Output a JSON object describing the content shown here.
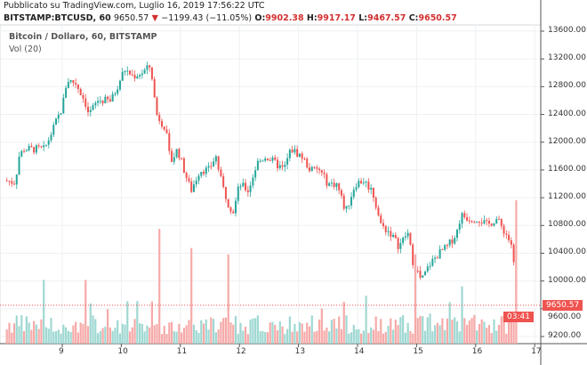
{
  "header": {
    "published": "Pubblicato su TradingView.com, Luglio 16, 2019 17:56:22 UTC",
    "symbol": "BITSTAMP:BTCUSD, 60",
    "last": "9650.57",
    "down_arrow": "▼",
    "change": "−1199.43 (−11.05%)",
    "o_label": "O:",
    "o": "9902.38",
    "h_label": "H:",
    "h": "9917.17",
    "l_label": "L:",
    "l": "9467.57",
    "c_label": "C:",
    "c": "9650.57"
  },
  "legend": {
    "title": "Bitcoin / Dollaro, 60, BITSTAMP",
    "volume": "Vol (20)"
  },
  "colors": {
    "up": "#26a69a",
    "down": "#ef5350",
    "up_vol": "#9fd8d2",
    "down_vol": "#f6aaa8",
    "grid": "#eef0f3"
  },
  "last_price_tag": "9650.57",
  "countdown": "03:41",
  "chart_data": {
    "type": "candlestick",
    "title": "Bitcoin / Dollaro, 60, BITSTAMP",
    "ylim": [
      9100,
      13700
    ],
    "y_ticks": [
      "13600.00",
      "13200.00",
      "12800.00",
      "12400.00",
      "12000.00",
      "11600.00",
      "11200.00",
      "10800.00",
      "10400.00",
      "10000.00",
      "9600.00",
      "9200.00"
    ],
    "y_tick_values": [
      13600,
      13200,
      12800,
      12400,
      12000,
      11600,
      11200,
      10800,
      10400,
      10000,
      9600,
      9200
    ],
    "x_ticks": [
      "9",
      "10",
      "11",
      "12",
      "13",
      "14",
      "15",
      "16",
      "17"
    ],
    "x_tick_values": [
      9,
      10,
      11,
      12,
      13,
      14,
      15,
      16,
      17
    ],
    "close_waypoints_day_price": [
      [
        8.02,
        11450
      ],
      [
        8.2,
        11420
      ],
      [
        8.27,
        11800
      ],
      [
        8.35,
        11900
      ],
      [
        8.7,
        11900
      ],
      [
        8.8,
        12100
      ],
      [
        9.0,
        12500
      ],
      [
        9.08,
        12900
      ],
      [
        9.23,
        12850
      ],
      [
        9.38,
        12600
      ],
      [
        9.45,
        12400
      ],
      [
        9.6,
        12600
      ],
      [
        9.83,
        12600
      ],
      [
        9.98,
        12900
      ],
      [
        10.05,
        13050
      ],
      [
        10.2,
        12950
      ],
      [
        10.35,
        13000
      ],
      [
        10.5,
        13100
      ],
      [
        10.55,
        12700
      ],
      [
        10.6,
        12400
      ],
      [
        10.75,
        12200
      ],
      [
        10.83,
        11700
      ],
      [
        10.95,
        11900
      ],
      [
        11.1,
        11500
      ],
      [
        11.18,
        11300
      ],
      [
        11.33,
        11600
      ],
      [
        11.48,
        11600
      ],
      [
        11.6,
        11800
      ],
      [
        11.7,
        11400
      ],
      [
        11.82,
        11100
      ],
      [
        11.9,
        11000
      ],
      [
        12.0,
        11400
      ],
      [
        12.15,
        11300
      ],
      [
        12.3,
        11700
      ],
      [
        12.45,
        11800
      ],
      [
        12.6,
        11700
      ],
      [
        12.75,
        11600
      ],
      [
        12.87,
        11900
      ],
      [
        13.05,
        11800
      ],
      [
        13.2,
        11600
      ],
      [
        13.35,
        11600
      ],
      [
        13.5,
        11400
      ],
      [
        13.65,
        11400
      ],
      [
        13.8,
        11000
      ],
      [
        13.88,
        11200
      ],
      [
        13.96,
        11400
      ],
      [
        14.1,
        11450
      ],
      [
        14.25,
        11300
      ],
      [
        14.4,
        10800
      ],
      [
        14.55,
        10700
      ],
      [
        14.7,
        10500
      ],
      [
        14.85,
        10700
      ],
      [
        14.93,
        10300
      ],
      [
        15.08,
        10000
      ],
      [
        15.23,
        10250
      ],
      [
        15.38,
        10400
      ],
      [
        15.53,
        10500
      ],
      [
        15.68,
        10700
      ],
      [
        15.75,
        10950
      ],
      [
        15.9,
        10900
      ],
      [
        16.05,
        10900
      ],
      [
        16.2,
        10800
      ],
      [
        16.35,
        10900
      ],
      [
        16.5,
        10700
      ],
      [
        16.62,
        10500
      ],
      [
        16.7,
        9650
      ]
    ],
    "volume_spikes_day_relative": [
      [
        10.63,
        0.36
      ],
      [
        11.17,
        0.3
      ],
      [
        11.82,
        0.28
      ],
      [
        14.98,
        0.28
      ],
      [
        15.75,
        0.18
      ],
      [
        16.69,
        0.5
      ],
      [
        16.68,
        0.45
      ],
      [
        8.7,
        0.2
      ],
      [
        9.4,
        0.2
      ]
    ],
    "last_price": 9650.57
  }
}
